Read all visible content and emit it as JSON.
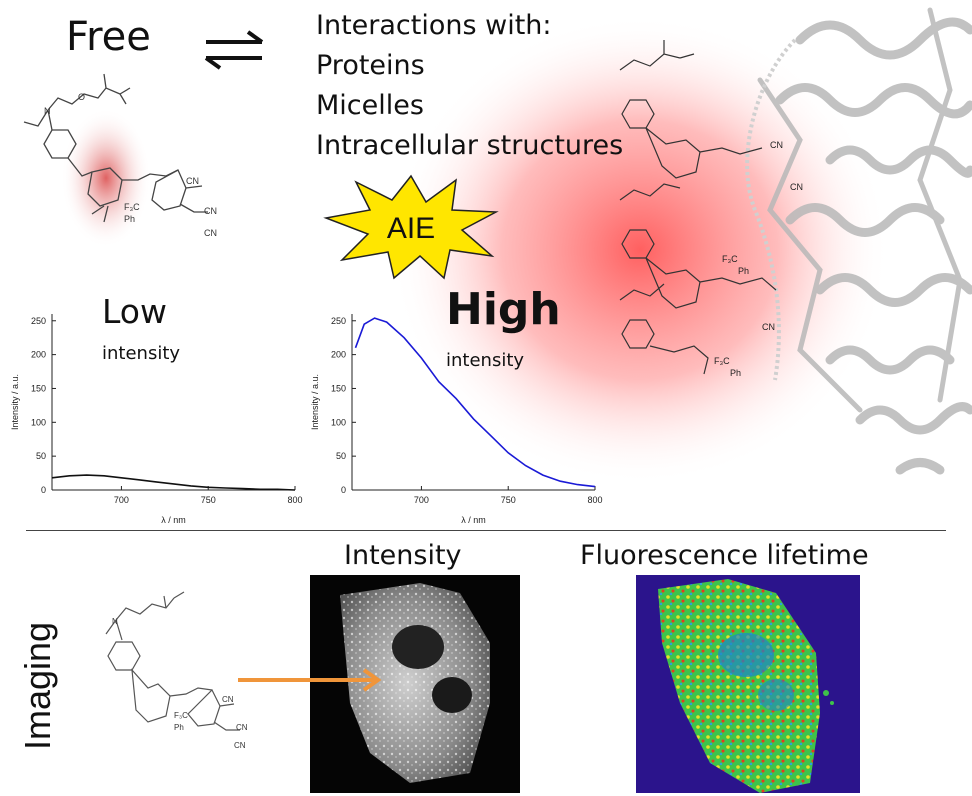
{
  "top": {
    "free_label": "Free",
    "interactions_lines": [
      "Interactions with:",
      "Proteins",
      "Micelles",
      "Intracellular structures"
    ],
    "aie_label": "AIE"
  },
  "spectra": {
    "low": {
      "big": "Low",
      "small": "intensity"
    },
    "high": {
      "big": "High",
      "small": "intensity"
    }
  },
  "molecule_labels": {
    "cn": "CN",
    "f3c": "F₃C",
    "ph": "Ph",
    "o": "O",
    "n": "N"
  },
  "bottom": {
    "imaging_label": "Imaging",
    "intensity_label": "Intensity",
    "lifetime_label": "Fluorescence lifetime"
  },
  "colors": {
    "red_glow": "#ff2b2b",
    "high_curve": "#1a1ad6",
    "low_curve": "#111111",
    "arrow": "#f0953a",
    "lifetime_bg": "#2b148c",
    "protein": "#b8b8b8"
  },
  "chart_data": [
    {
      "type": "line",
      "title": "",
      "xlabel": "λ / nm",
      "ylabel": "Intensity / a.u.",
      "xlim": [
        660,
        800
      ],
      "ylim": [
        0,
        260
      ],
      "xticks": [
        700,
        750,
        800
      ],
      "yticks": [
        0,
        50,
        100,
        150,
        200,
        250
      ],
      "series": [
        {
          "x": [
            660,
            670,
            680,
            690,
            700,
            710,
            720,
            730,
            740,
            750,
            760,
            770,
            780,
            790,
            800
          ],
          "y": [
            18,
            21,
            22,
            21,
            18,
            15,
            12,
            9,
            6,
            4,
            3,
            2,
            1,
            1,
            0
          ]
        }
      ]
    },
    {
      "type": "line",
      "title": "",
      "xlabel": "λ / nm",
      "ylabel": "Intensity / a.u.",
      "xlim": [
        660,
        800
      ],
      "ylim": [
        0,
        260
      ],
      "xticks": [
        700,
        750,
        800
      ],
      "yticks": [
        0,
        50,
        100,
        150,
        200,
        250
      ],
      "series": [
        {
          "x": [
            662,
            667,
            673,
            680,
            690,
            700,
            710,
            720,
            730,
            740,
            750,
            760,
            770,
            780,
            790,
            800
          ],
          "y": [
            210,
            245,
            254,
            248,
            225,
            195,
            160,
            135,
            105,
            80,
            55,
            36,
            22,
            13,
            8,
            5
          ]
        }
      ]
    }
  ]
}
